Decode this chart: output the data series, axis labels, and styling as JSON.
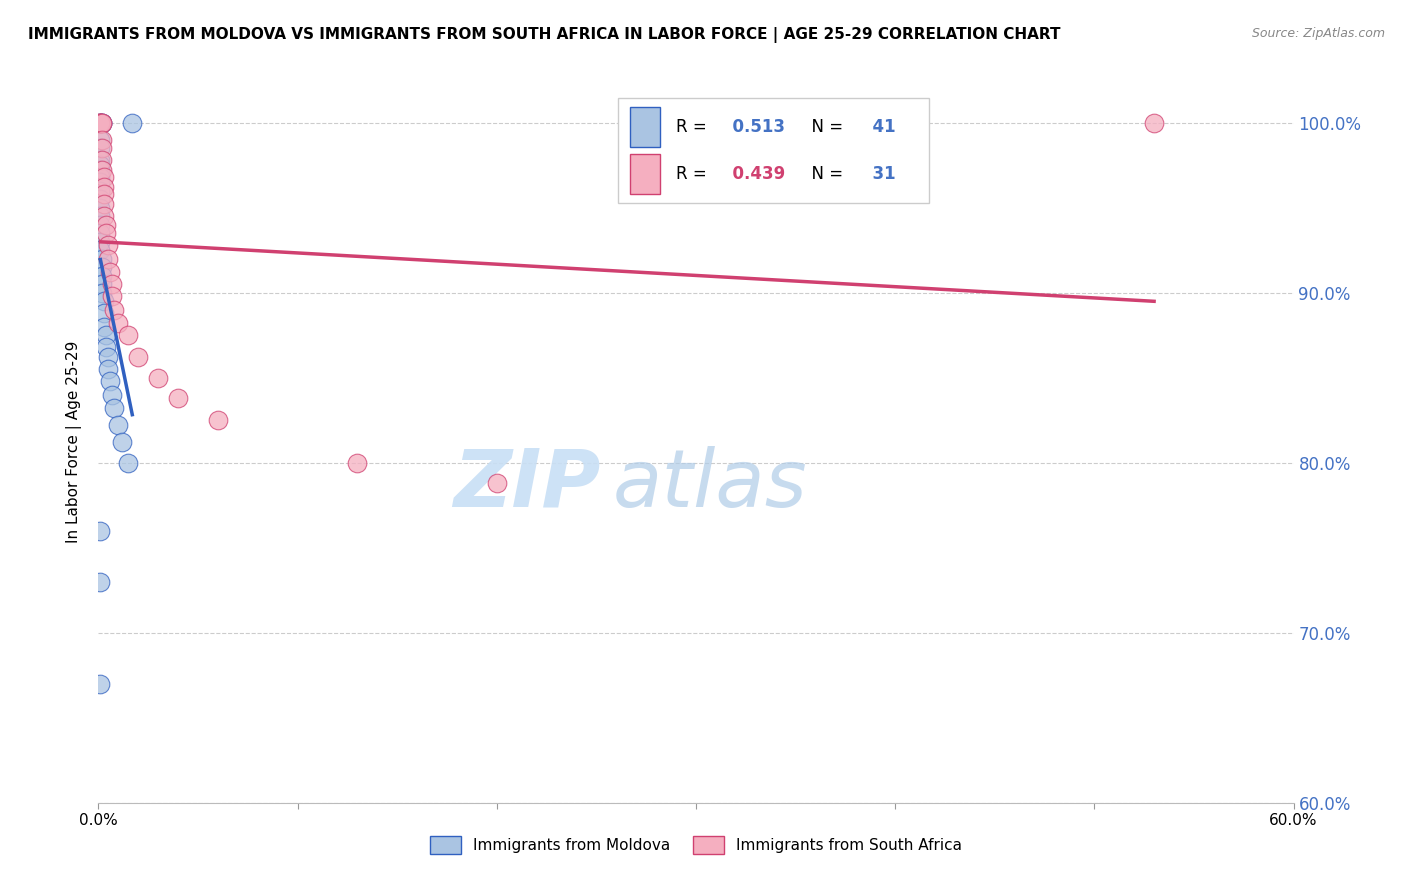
{
  "title": "IMMIGRANTS FROM MOLDOVA VS IMMIGRANTS FROM SOUTH AFRICA IN LABOR FORCE | AGE 25-29 CORRELATION CHART",
  "source": "Source: ZipAtlas.com",
  "ylabel": "In Labor Force | Age 25-29",
  "xlim": [
    0.0,
    0.6
  ],
  "ylim": [
    0.6,
    1.025
  ],
  "xticks": [
    0.0,
    0.1,
    0.2,
    0.3,
    0.4,
    0.5,
    0.6
  ],
  "xticklabels": [
    "0.0%",
    "",
    "",
    "",
    "",
    "",
    "60.0%"
  ],
  "yticks": [
    0.6,
    0.7,
    0.8,
    0.9,
    1.0
  ],
  "yticklabels": [
    "60.0%",
    "70.0%",
    "80.0%",
    "90.0%",
    "100.0%"
  ],
  "legend_labels": [
    "Immigrants from Moldova",
    "Immigrants from South Africa"
  ],
  "r_moldova": 0.513,
  "n_moldova": 41,
  "r_south_africa": 0.439,
  "n_south_africa": 31,
  "moldova_color": "#aac4e2",
  "south_africa_color": "#f5afc0",
  "trendline_moldova_color": "#3060c0",
  "trendline_sa_color": "#d04070",
  "watermark_zip": "ZIP",
  "watermark_atlas": "atlas",
  "moldova_x": [
    0.001,
    0.001,
    0.002,
    0.002,
    0.001,
    0.001,
    0.001,
    0.001,
    0.001,
    0.001,
    0.001,
    0.001,
    0.001,
    0.001,
    0.001,
    0.001,
    0.001,
    0.001,
    0.001,
    0.002,
    0.002,
    0.002,
    0.002,
    0.002,
    0.003,
    0.003,
    0.003,
    0.004,
    0.004,
    0.005,
    0.005,
    0.006,
    0.007,
    0.008,
    0.01,
    0.012,
    0.015,
    0.001,
    0.001,
    0.001,
    0.017
  ],
  "moldova_y": [
    1.0,
    1.0,
    1.0,
    1.0,
    0.99,
    0.985,
    0.978,
    0.975,
    0.972,
    0.968,
    0.965,
    0.96,
    0.955,
    0.95,
    0.945,
    0.94,
    0.935,
    0.93,
    0.925,
    0.92,
    0.915,
    0.91,
    0.905,
    0.9,
    0.895,
    0.888,
    0.88,
    0.875,
    0.868,
    0.862,
    0.855,
    0.848,
    0.84,
    0.832,
    0.822,
    0.812,
    0.8,
    0.76,
    0.73,
    0.67,
    1.0
  ],
  "sa_x": [
    0.001,
    0.001,
    0.001,
    0.002,
    0.002,
    0.002,
    0.002,
    0.002,
    0.002,
    0.003,
    0.003,
    0.003,
    0.003,
    0.003,
    0.004,
    0.004,
    0.005,
    0.005,
    0.006,
    0.007,
    0.007,
    0.008,
    0.01,
    0.015,
    0.02,
    0.03,
    0.04,
    0.06,
    0.13,
    0.2,
    0.53
  ],
  "sa_y": [
    1.0,
    1.0,
    1.0,
    1.0,
    1.0,
    0.99,
    0.985,
    0.978,
    0.972,
    0.968,
    0.962,
    0.958,
    0.952,
    0.945,
    0.94,
    0.935,
    0.928,
    0.92,
    0.912,
    0.905,
    0.898,
    0.89,
    0.882,
    0.875,
    0.862,
    0.85,
    0.838,
    0.825,
    0.8,
    0.788,
    1.0
  ]
}
